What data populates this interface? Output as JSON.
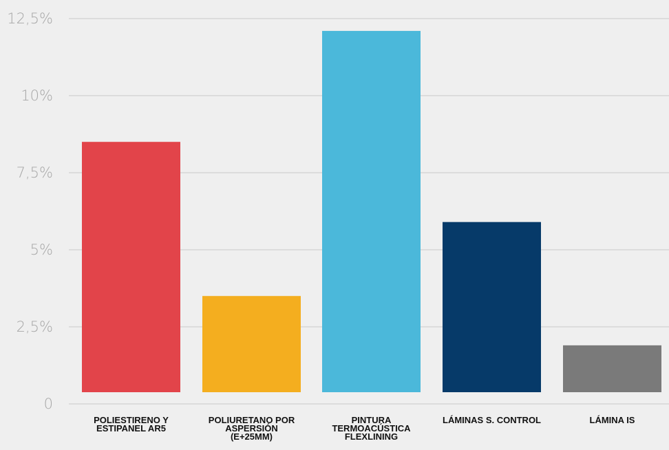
{
  "chart_data": {
    "type": "bar",
    "categories": [
      [
        "POLIESTIRENO Y",
        "ESTIPANEL AR5"
      ],
      [
        "POLIURETANO POR",
        "ASPERSIÓN",
        "(E+25MM)"
      ],
      [
        "PINTURA",
        "TERMOACÚSTICA",
        "FLEXLINING"
      ],
      [
        "LÁMINAS S. CONTROL"
      ],
      [
        "LÁMINA IS"
      ]
    ],
    "values": [
      8.5,
      3.5,
      12.1,
      5.9,
      1.9
    ],
    "colors": [
      "#e2444a",
      "#f4ae1f",
      "#4bb8da",
      "#063a69",
      "#7a7a7a"
    ],
    "y_ticks": [
      0,
      2.5,
      5,
      7.5,
      10,
      12.5
    ],
    "y_tick_labels": [
      "0",
      "2,5%",
      "5%",
      "7,5%",
      "10%",
      "12,5%"
    ],
    "ylim": [
      0,
      12.5
    ],
    "grid": true
  }
}
